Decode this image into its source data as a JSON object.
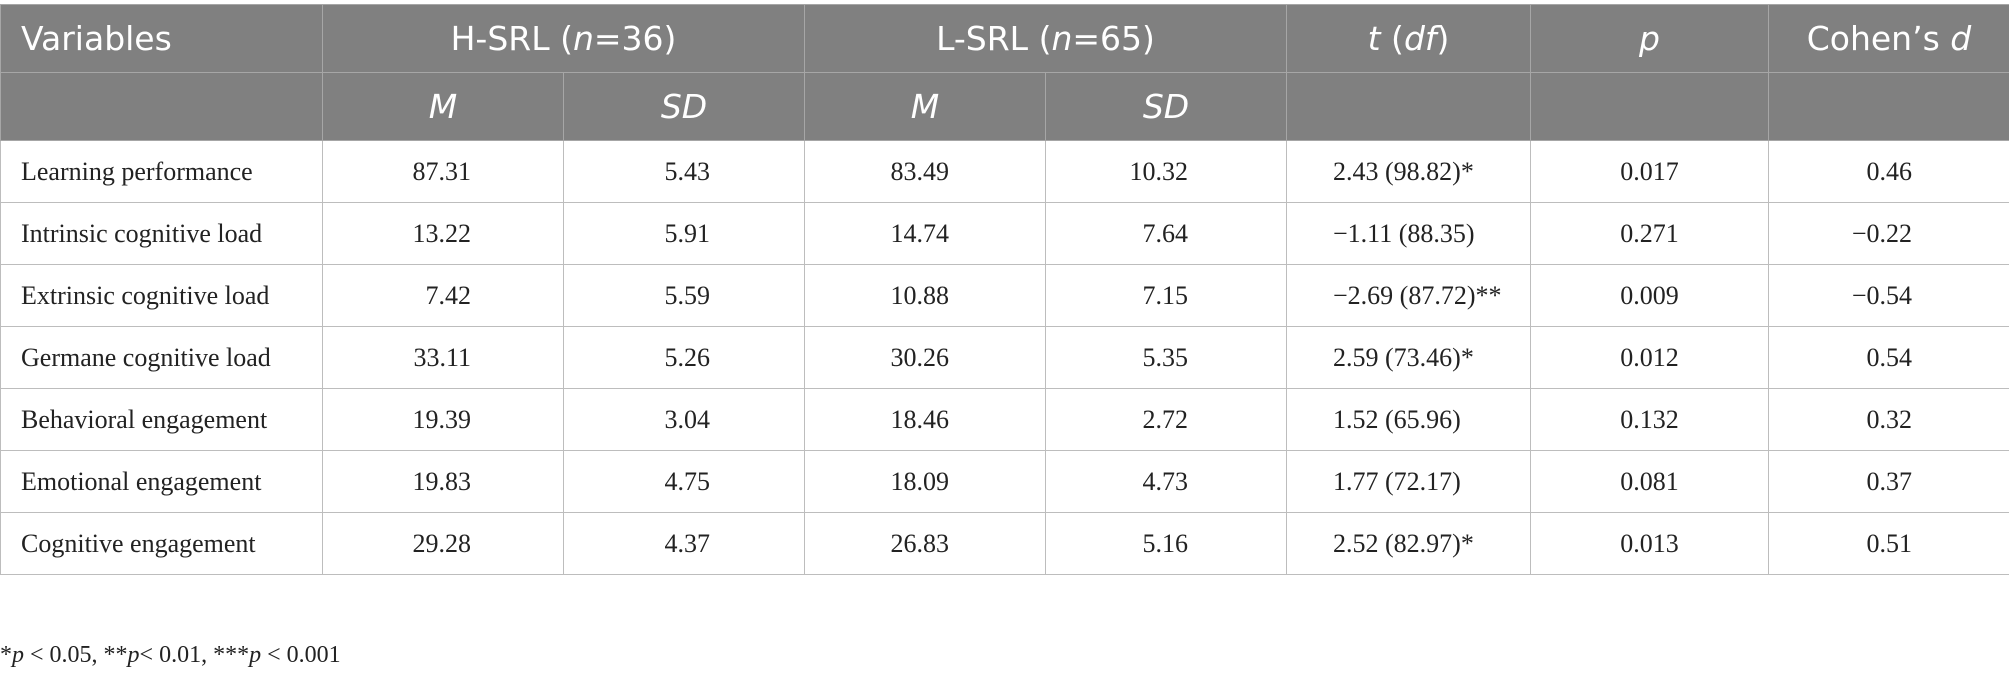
{
  "header": {
    "variables": "Variables",
    "group1": {
      "name": "H-SRL",
      "n_label": "n",
      "n_value": "=36"
    },
    "group2": {
      "name": "L-SRL",
      "n_label": "n",
      "n_value": "=65"
    },
    "t": "t",
    "df": "df",
    "p": "p",
    "cohens": "Cohen’s",
    "d": "d",
    "m": "M",
    "sd": "SD"
  },
  "rows": [
    {
      "variable": "Learning performance",
      "h_m": "87.31",
      "h_sd": "5.43",
      "l_m": "83.49",
      "l_sd": "10.32",
      "t": "2.43 (98.82)*",
      "p": "0.017",
      "d": "0.46"
    },
    {
      "variable": "Intrinsic cognitive load",
      "h_m": "13.22",
      "h_sd": "5.91",
      "l_m": "14.74",
      "l_sd": "7.64",
      "t": "−1.11 (88.35)",
      "p": "0.271",
      "d": "−0.22"
    },
    {
      "variable": "Extrinsic cognitive load",
      "h_m": "7.42",
      "h_sd": "5.59",
      "l_m": "10.88",
      "l_sd": "7.15",
      "t": "−2.69 (87.72)**",
      "p": "0.009",
      "d": "−0.54"
    },
    {
      "variable": "Germane cognitive load",
      "h_m": "33.11",
      "h_sd": "5.26",
      "l_m": "30.26",
      "l_sd": "5.35",
      "t": "2.59 (73.46)*",
      "p": "0.012",
      "d": "0.54"
    },
    {
      "variable": "Behavioral engagement",
      "h_m": "19.39",
      "h_sd": "3.04",
      "l_m": "18.46",
      "l_sd": "2.72",
      "t": "1.52 (65.96)",
      "p": "0.132",
      "d": "0.32"
    },
    {
      "variable": "Emotional engagement",
      "h_m": "19.83",
      "h_sd": "4.75",
      "l_m": "18.09",
      "l_sd": "4.73",
      "t": "1.77 (72.17)",
      "p": "0.081",
      "d": "0.37"
    },
    {
      "variable": "Cognitive engagement",
      "h_m": "29.28",
      "h_sd": "4.37",
      "l_m": "26.83",
      "l_sd": "5.16",
      "t": "2.52 (82.97)*",
      "p": "0.013",
      "d": "0.51"
    }
  ],
  "footnote": {
    "items": [
      {
        "prefix": "*",
        "p": "p",
        "rest": " < 0.05, "
      },
      {
        "prefix": "**",
        "p": "p",
        "rest": "< 0.01, "
      },
      {
        "prefix": "***",
        "p": "p",
        "rest": " < 0.001"
      }
    ]
  }
}
